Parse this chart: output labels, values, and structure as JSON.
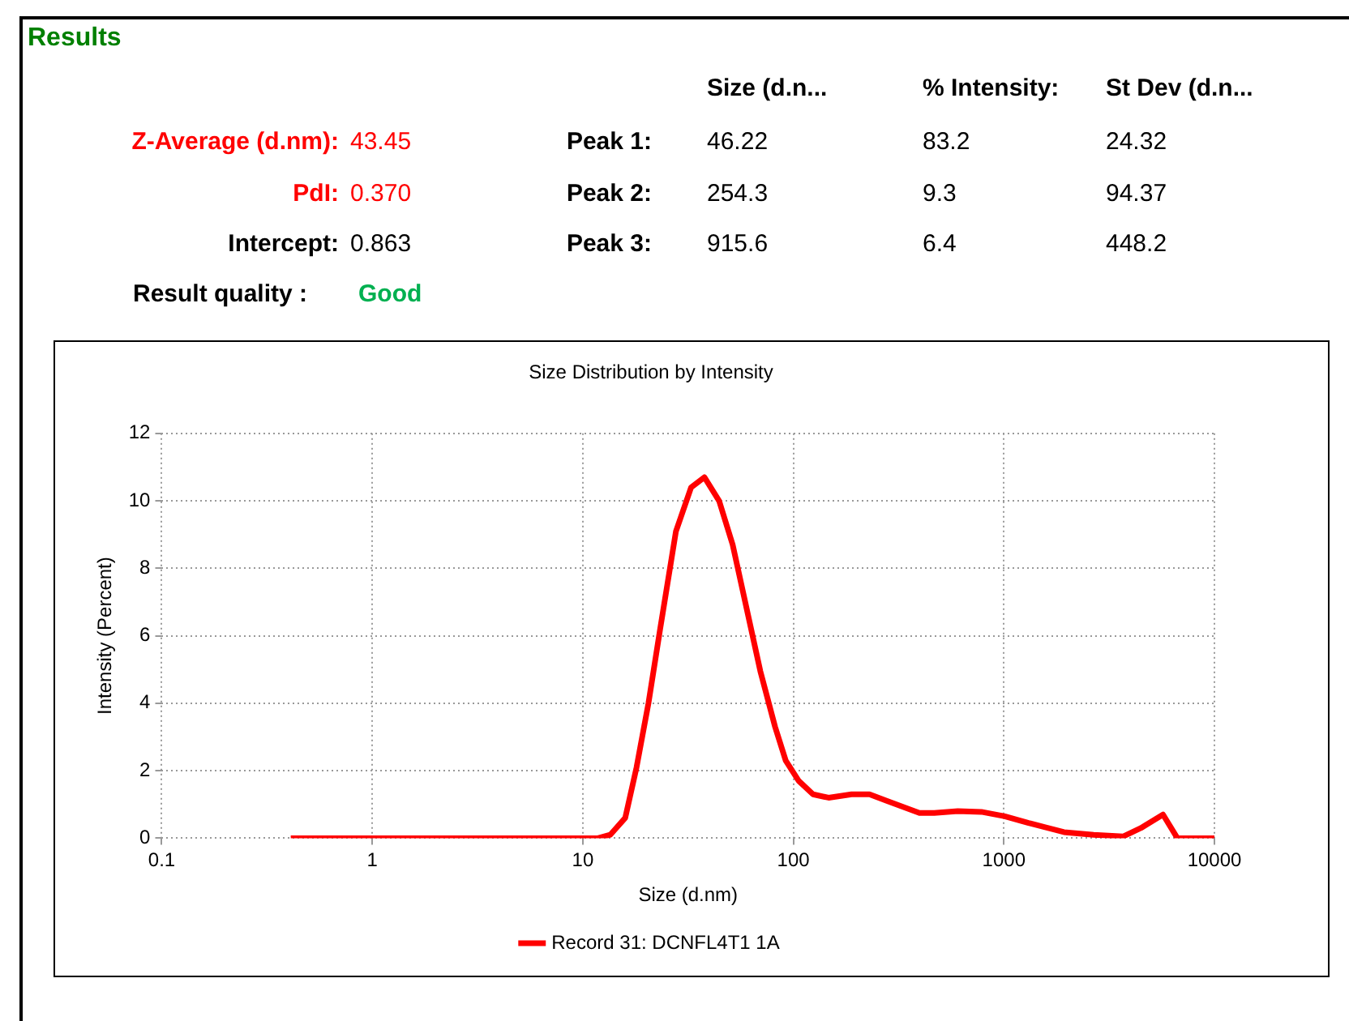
{
  "chart_data": {
    "type": "line",
    "title": "Size Distribution by Intensity",
    "xlabel": "Size (d.nm)",
    "ylabel": "Intensity (Percent)",
    "annotations": [
      "Results",
      "Size (d.n...",
      "% Intensity:",
      "St Dev (d.n...",
      "Z-Average (d.nm):",
      "43.45",
      "Peak 1:",
      "46.22",
      "83.2",
      "24.32",
      "PdI:",
      "0.370",
      "Peak 2:",
      "254.3",
      "9.3",
      "94.37",
      "Intercept:",
      "0.863",
      "Peak 3:",
      "915.6",
      "6.4",
      "448.2",
      "Result quality :",
      "Good"
    ],
    "x": [
      0.41,
      11.8,
      13.5,
      15.9,
      18,
      20.5,
      23.3,
      27.7,
      32.7,
      37.8,
      44.4,
      51.5,
      69.7,
      81.9,
      92,
      106,
      124,
      147,
      189,
      230,
      279,
      397,
      467,
      604,
      782,
      1010,
      1310,
      1930,
      2670,
      3680,
      4470,
      5700,
      6670,
      10000
    ],
    "series": [
      {
        "name": "Record 31: DCNFL4T1 1A",
        "color": "#ff0000",
        "values": [
          0,
          0,
          0.1,
          0.6,
          2.1,
          4.0,
          6.2,
          9.1,
          10.4,
          10.7,
          10.0,
          8.7,
          4.95,
          3.3,
          2.3,
          1.7,
          1.3,
          1.2,
          1.3,
          1.3,
          1.1,
          0.75,
          0.75,
          0.8,
          0.78,
          0.65,
          0.45,
          0.18,
          0.1,
          0.05,
          0.3,
          0.7,
          0,
          0
        ]
      }
    ],
    "xlim": [
      0.1,
      10000
    ],
    "xticks": [
      0.1,
      1,
      10,
      100,
      1000,
      10000
    ],
    "ylim": [
      0,
      12
    ],
    "yticks": [
      0,
      2,
      4,
      6,
      8,
      10,
      12
    ],
    "log": "x",
    "grid": true,
    "legend": "bottom",
    "marker": "none",
    "line_style": "solid"
  }
}
